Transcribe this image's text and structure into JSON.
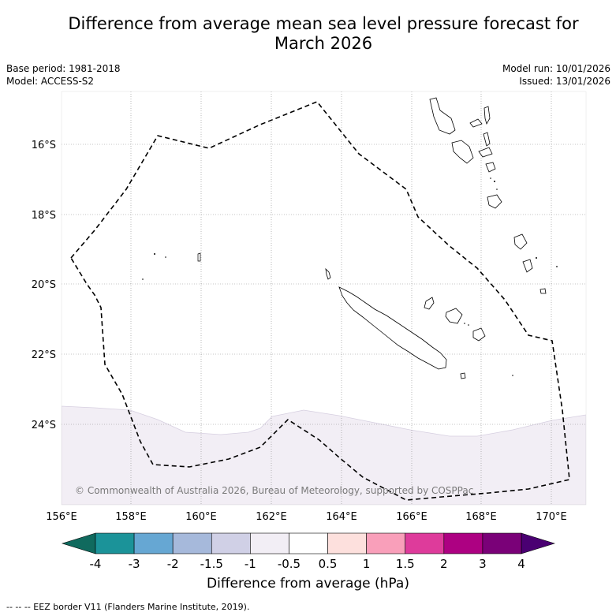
{
  "title_line1": "Difference from average mean sea level pressure forecast for",
  "title_line2": "March 2026",
  "meta_left": {
    "base_period": "Base period: 1981-2018",
    "model": "Model: ACCESS-S2"
  },
  "meta_right": {
    "model_run": "Model run: 10/01/2026",
    "issued": "Issued: 13/01/2026"
  },
  "map": {
    "lon_ticks": [
      "156°E",
      "158°E",
      "160°E",
      "162°E",
      "164°E",
      "166°E",
      "168°E",
      "170°E"
    ],
    "lat_ticks": [
      "16°S",
      "18°S",
      "20°S",
      "22°S",
      "24°S"
    ],
    "copyright": "© Commonwealth of Australia 2026, Bureau of Meteorology, supported by COSPPac",
    "shaded_category": "-1 to -0.5 hPa",
    "shaded_color": "#f2eef5"
  },
  "colorbar": {
    "label": "Difference from average (hPa)",
    "ticks": [
      "-4",
      "-3",
      "-2",
      "-1.5",
      "-1",
      "-0.5",
      "0.5",
      "1",
      "1.5",
      "2",
      "3",
      "4"
    ],
    "colors": [
      "#106a5e",
      "#1b9399",
      "#66a7d3",
      "#a6b9db",
      "#d0d0e6",
      "#f2eef5",
      "#ffffff",
      "#fde0dd",
      "#f99fba",
      "#de3b9b",
      "#ad0182",
      "#7a0178",
      "#4a0072"
    ]
  },
  "footnote": "--  --  -- EEZ border V11 (Flanders Marine Institute, 2019)."
}
